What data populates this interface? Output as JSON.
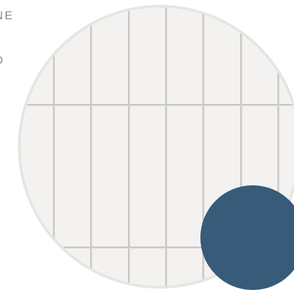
{
  "side_text": {
    "line_1": "NE",
    "line_2": "D"
  },
  "colors": {
    "tile": "#f3f2f1",
    "grout": "#c4c3c0",
    "accent_circle": "#375b79",
    "text": "#8a8a8a"
  }
}
